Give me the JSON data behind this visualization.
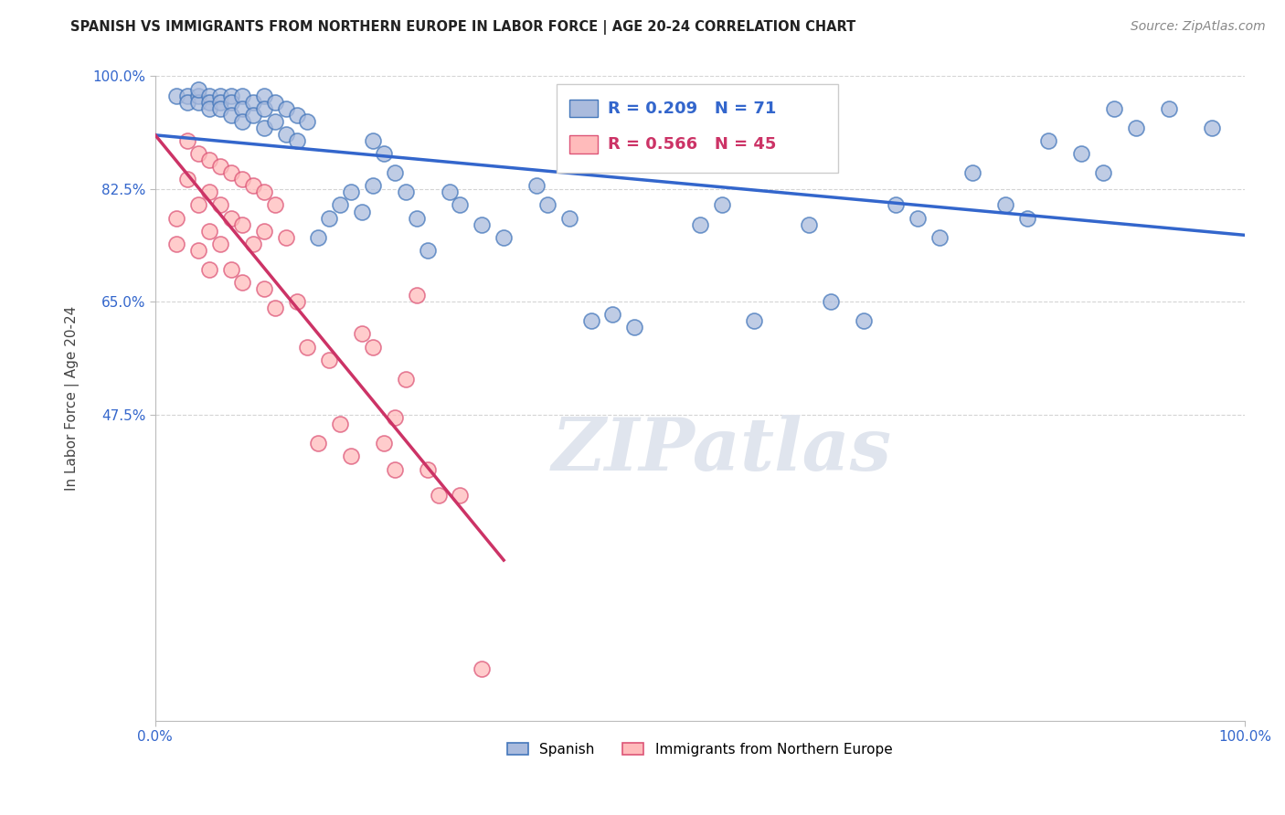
{
  "title": "SPANISH VS IMMIGRANTS FROM NORTHERN EUROPE IN LABOR FORCE | AGE 20-24 CORRELATION CHART",
  "source": "Source: ZipAtlas.com",
  "ylabel": "In Labor Force | Age 20-24",
  "xlim": [
    0.0,
    1.0
  ],
  "ylim": [
    0.0,
    1.0
  ],
  "xtick_labels": [
    "0.0%",
    "100.0%"
  ],
  "ytick_labels": [
    "100.0%",
    "82.5%",
    "65.0%",
    "47.5%"
  ],
  "ytick_positions": [
    1.0,
    0.825,
    0.65,
    0.475
  ],
  "grid_color": "#d0d0d0",
  "background_color": "#ffffff",
  "blue_fill": "#aabbdd",
  "blue_edge": "#4477bb",
  "pink_fill": "#ffbbbb",
  "pink_edge": "#dd5577",
  "blue_line_color": "#3366cc",
  "pink_line_color": "#cc3366",
  "R_blue": 0.209,
  "N_blue": 71,
  "R_pink": 0.566,
  "N_pink": 45,
  "legend_label_blue": "Spanish",
  "legend_label_pink": "Immigrants from Northern Europe",
  "blue_scatter_x": [
    0.02,
    0.03,
    0.03,
    0.04,
    0.04,
    0.04,
    0.05,
    0.05,
    0.05,
    0.06,
    0.06,
    0.06,
    0.07,
    0.07,
    0.07,
    0.08,
    0.08,
    0.08,
    0.09,
    0.09,
    0.1,
    0.1,
    0.1,
    0.11,
    0.11,
    0.12,
    0.12,
    0.13,
    0.13,
    0.14,
    0.15,
    0.16,
    0.17,
    0.18,
    0.19,
    0.2,
    0.2,
    0.21,
    0.22,
    0.23,
    0.24,
    0.25,
    0.27,
    0.28,
    0.3,
    0.32,
    0.35,
    0.36,
    0.38,
    0.4,
    0.42,
    0.44,
    0.5,
    0.52,
    0.55,
    0.6,
    0.62,
    0.65,
    0.68,
    0.7,
    0.72,
    0.75,
    0.78,
    0.8,
    0.82,
    0.85,
    0.87,
    0.88,
    0.9,
    0.93,
    0.97
  ],
  "blue_scatter_y": [
    0.97,
    0.97,
    0.96,
    0.97,
    0.96,
    0.98,
    0.97,
    0.96,
    0.95,
    0.97,
    0.96,
    0.95,
    0.97,
    0.96,
    0.94,
    0.97,
    0.95,
    0.93,
    0.96,
    0.94,
    0.97,
    0.95,
    0.92,
    0.96,
    0.93,
    0.95,
    0.91,
    0.94,
    0.9,
    0.93,
    0.75,
    0.78,
    0.8,
    0.82,
    0.79,
    0.9,
    0.83,
    0.88,
    0.85,
    0.82,
    0.78,
    0.73,
    0.82,
    0.8,
    0.77,
    0.75,
    0.83,
    0.8,
    0.78,
    0.62,
    0.63,
    0.61,
    0.77,
    0.8,
    0.62,
    0.77,
    0.65,
    0.62,
    0.8,
    0.78,
    0.75,
    0.85,
    0.8,
    0.78,
    0.9,
    0.88,
    0.85,
    0.95,
    0.92,
    0.95,
    0.92
  ],
  "pink_scatter_x": [
    0.02,
    0.02,
    0.03,
    0.03,
    0.04,
    0.04,
    0.04,
    0.05,
    0.05,
    0.05,
    0.05,
    0.06,
    0.06,
    0.06,
    0.07,
    0.07,
    0.07,
    0.08,
    0.08,
    0.08,
    0.09,
    0.09,
    0.1,
    0.1,
    0.1,
    0.11,
    0.11,
    0.12,
    0.13,
    0.14,
    0.15,
    0.16,
    0.17,
    0.18,
    0.19,
    0.2,
    0.21,
    0.22,
    0.22,
    0.23,
    0.24,
    0.25,
    0.26,
    0.28,
    0.3
  ],
  "pink_scatter_y": [
    0.78,
    0.74,
    0.9,
    0.84,
    0.88,
    0.8,
    0.73,
    0.87,
    0.82,
    0.76,
    0.7,
    0.86,
    0.8,
    0.74,
    0.85,
    0.78,
    0.7,
    0.84,
    0.77,
    0.68,
    0.83,
    0.74,
    0.82,
    0.76,
    0.67,
    0.8,
    0.64,
    0.75,
    0.65,
    0.58,
    0.43,
    0.56,
    0.46,
    0.41,
    0.6,
    0.58,
    0.43,
    0.39,
    0.47,
    0.53,
    0.66,
    0.39,
    0.35,
    0.35,
    0.08
  ],
  "watermark_text": "ZIPatlas",
  "watermark_color": "#e0e5ee"
}
